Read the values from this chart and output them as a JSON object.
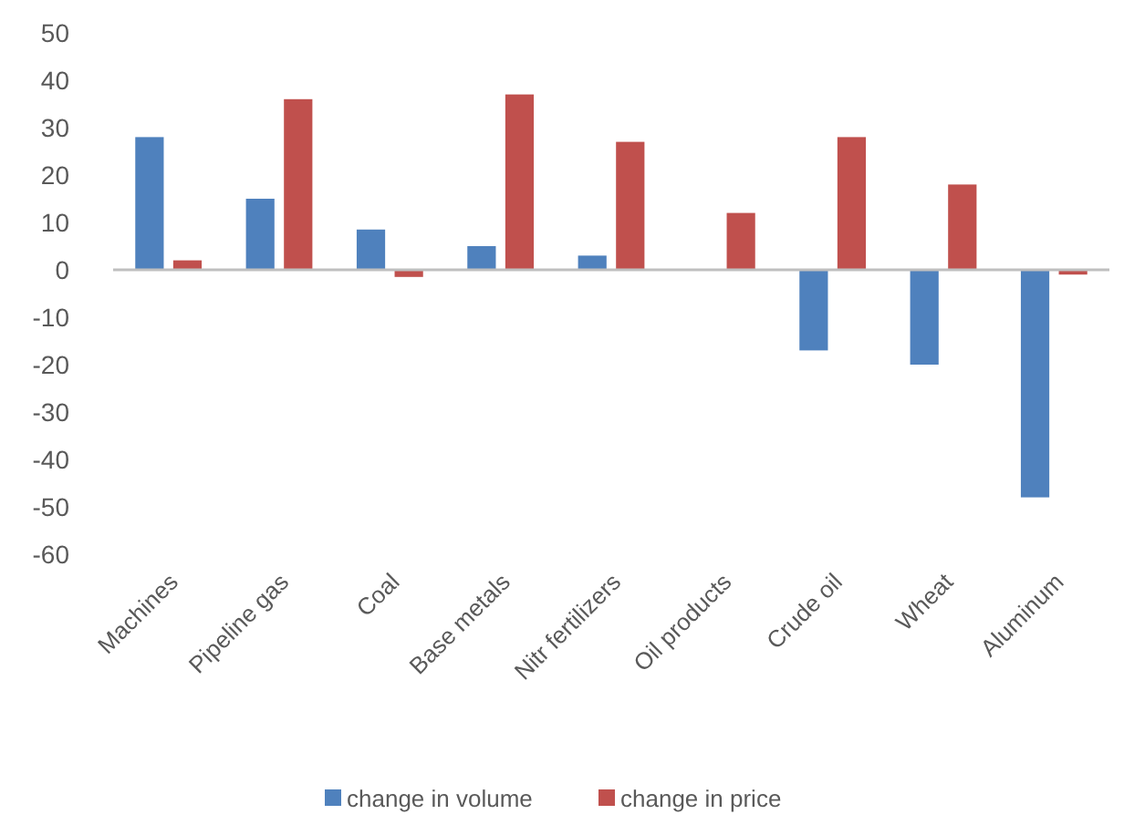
{
  "chart_data": {
    "type": "bar",
    "categories": [
      "Machines",
      "Pipeline gas",
      "Coal",
      "Base metals",
      "Nitr fertilizers",
      "Oil products",
      "Crude oil",
      "Wheat",
      "Aluminum"
    ],
    "series": [
      {
        "name": "change in volume",
        "color": "#4f81bd",
        "values": [
          28,
          15,
          8.5,
          5,
          3,
          0,
          -17,
          -20,
          -48
        ]
      },
      {
        "name": "change in price",
        "color": "#c0504d",
        "values": [
          2,
          36,
          -1.5,
          37,
          27,
          12,
          28,
          18,
          -1
        ]
      }
    ],
    "ylim": [
      -60,
      50
    ],
    "yticks": [
      -60,
      -50,
      -40,
      -30,
      -20,
      -10,
      0,
      10,
      20,
      30,
      40,
      50
    ],
    "legend": "bottom"
  }
}
